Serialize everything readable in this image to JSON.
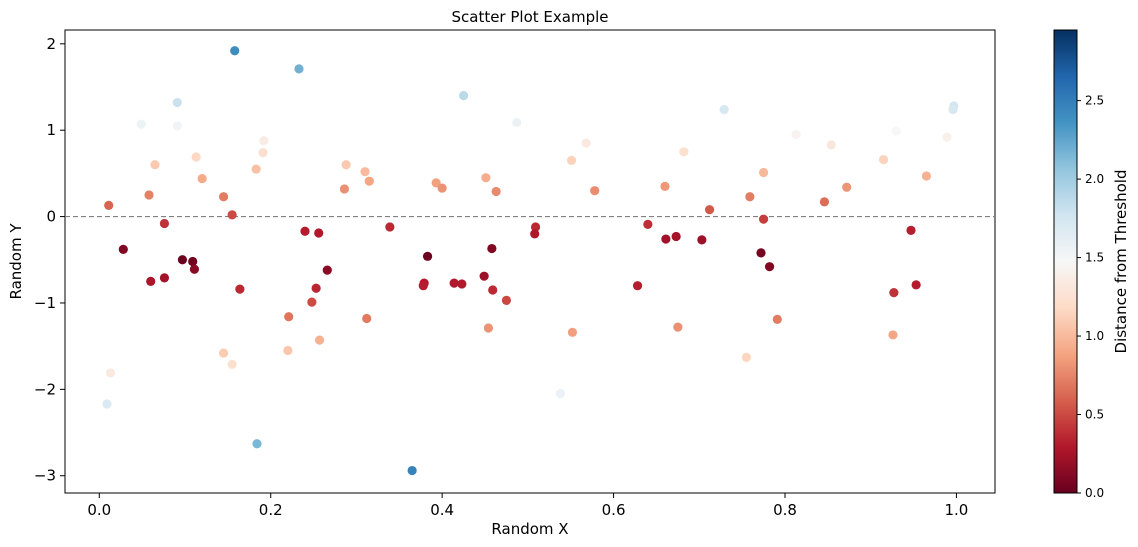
{
  "chart_data": {
    "type": "scatter",
    "title": "Scatter Plot Example",
    "xlabel": "Random X",
    "ylabel": "Random Y",
    "xlim": [
      -0.04,
      1.045
    ],
    "ylim": [
      -3.2,
      2.16
    ],
    "xticks": [
      0.0,
      0.2,
      0.4,
      0.6,
      0.8,
      1.0
    ],
    "xtick_labels": [
      "0.0",
      "0.2",
      "0.4",
      "0.6",
      "0.8",
      "1.0"
    ],
    "yticks": [
      -3,
      -2,
      -1,
      0,
      1,
      2
    ],
    "ytick_labels": [
      "−3",
      "−2",
      "−1",
      "0",
      "1",
      "2"
    ],
    "threshold_line": {
      "y": 0,
      "style": "dashed",
      "color": "#808080"
    },
    "colormap": "RdBu",
    "colorbar": {
      "label": "Distance from Threshold",
      "range": [
        0.0,
        2.95
      ],
      "ticks": [
        0.0,
        0.5,
        1.0,
        1.5,
        2.0,
        2.5
      ],
      "tick_labels": [
        "0.0",
        "0.5",
        "1.0",
        "1.5",
        "2.0",
        "2.5"
      ]
    },
    "grid": false,
    "points": [
      {
        "x": 0.158,
        "y": 1.92,
        "c": 2.4
      },
      {
        "x": 0.233,
        "y": 1.71,
        "c": 2.19
      },
      {
        "x": 0.425,
        "y": 1.4,
        "c": 1.88
      },
      {
        "x": 0.091,
        "y": 1.32,
        "c": 1.8
      },
      {
        "x": 0.729,
        "y": 1.24,
        "c": 1.72
      },
      {
        "x": 0.997,
        "y": 1.28,
        "c": 1.76
      },
      {
        "x": 0.996,
        "y": 1.24,
        "c": 1.72
      },
      {
        "x": 0.049,
        "y": 1.07,
        "c": 1.55
      },
      {
        "x": 0.091,
        "y": 1.05,
        "c": 1.53
      },
      {
        "x": 0.487,
        "y": 1.09,
        "c": 1.57
      },
      {
        "x": 0.93,
        "y": 0.99,
        "c": 1.47
      },
      {
        "x": 0.813,
        "y": 0.95,
        "c": 1.43
      },
      {
        "x": 0.989,
        "y": 0.92,
        "c": 1.4
      },
      {
        "x": 0.192,
        "y": 0.88,
        "c": 1.36
      },
      {
        "x": 0.568,
        "y": 0.85,
        "c": 1.33
      },
      {
        "x": 0.854,
        "y": 0.83,
        "c": 1.31
      },
      {
        "x": 0.682,
        "y": 0.75,
        "c": 1.23
      },
      {
        "x": 0.191,
        "y": 0.74,
        "c": 1.22
      },
      {
        "x": 0.113,
        "y": 0.69,
        "c": 1.17
      },
      {
        "x": 0.915,
        "y": 0.66,
        "c": 1.14
      },
      {
        "x": 0.551,
        "y": 0.65,
        "c": 1.13
      },
      {
        "x": 0.065,
        "y": 0.6,
        "c": 1.08
      },
      {
        "x": 0.288,
        "y": 0.6,
        "c": 1.08
      },
      {
        "x": 0.183,
        "y": 0.55,
        "c": 1.03
      },
      {
        "x": 0.31,
        "y": 0.52,
        "c": 1.0
      },
      {
        "x": 0.775,
        "y": 0.51,
        "c": 0.99
      },
      {
        "x": 0.965,
        "y": 0.47,
        "c": 0.95
      },
      {
        "x": 0.451,
        "y": 0.45,
        "c": 0.93
      },
      {
        "x": 0.12,
        "y": 0.44,
        "c": 0.92
      },
      {
        "x": 0.315,
        "y": 0.41,
        "c": 0.89
      },
      {
        "x": 0.393,
        "y": 0.39,
        "c": 0.87
      },
      {
        "x": 0.66,
        "y": 0.35,
        "c": 0.83
      },
      {
        "x": 0.872,
        "y": 0.34,
        "c": 0.82
      },
      {
        "x": 0.4,
        "y": 0.33,
        "c": 0.81
      },
      {
        "x": 0.286,
        "y": 0.32,
        "c": 0.8
      },
      {
        "x": 0.578,
        "y": 0.3,
        "c": 0.78
      },
      {
        "x": 0.463,
        "y": 0.29,
        "c": 0.77
      },
      {
        "x": 0.058,
        "y": 0.25,
        "c": 0.73
      },
      {
        "x": 0.145,
        "y": 0.23,
        "c": 0.71
      },
      {
        "x": 0.759,
        "y": 0.23,
        "c": 0.71
      },
      {
        "x": 0.846,
        "y": 0.17,
        "c": 0.65
      },
      {
        "x": 0.011,
        "y": 0.13,
        "c": 0.61
      },
      {
        "x": 0.712,
        "y": 0.08,
        "c": 0.56
      },
      {
        "x": 0.155,
        "y": 0.02,
        "c": 0.5
      },
      {
        "x": 0.775,
        "y": -0.03,
        "c": 0.45
      },
      {
        "x": 0.076,
        "y": -0.08,
        "c": 0.4
      },
      {
        "x": 0.64,
        "y": -0.09,
        "c": 0.39
      },
      {
        "x": 0.509,
        "y": -0.12,
        "c": 0.36
      },
      {
        "x": 0.339,
        "y": -0.12,
        "c": 0.36
      },
      {
        "x": 0.947,
        "y": -0.16,
        "c": 0.32
      },
      {
        "x": 0.24,
        "y": -0.17,
        "c": 0.31
      },
      {
        "x": 0.508,
        "y": -0.2,
        "c": 0.28
      },
      {
        "x": 0.256,
        "y": -0.19,
        "c": 0.29
      },
      {
        "x": 0.673,
        "y": -0.23,
        "c": 0.25
      },
      {
        "x": 0.661,
        "y": -0.26,
        "c": 0.22
      },
      {
        "x": 0.703,
        "y": -0.27,
        "c": 0.21
      },
      {
        "x": 0.458,
        "y": -0.37,
        "c": 0.11
      },
      {
        "x": 0.028,
        "y": -0.38,
        "c": 0.1
      },
      {
        "x": 0.772,
        "y": -0.42,
        "c": 0.06
      },
      {
        "x": 0.383,
        "y": -0.46,
        "c": 0.02
      },
      {
        "x": 0.097,
        "y": -0.5,
        "c": 0.02
      },
      {
        "x": 0.109,
        "y": -0.52,
        "c": 0.04
      },
      {
        "x": 0.782,
        "y": -0.58,
        "c": 0.1
      },
      {
        "x": 0.111,
        "y": -0.61,
        "c": 0.13
      },
      {
        "x": 0.266,
        "y": -0.62,
        "c": 0.14
      },
      {
        "x": 0.449,
        "y": -0.69,
        "c": 0.21
      },
      {
        "x": 0.076,
        "y": -0.71,
        "c": 0.23
      },
      {
        "x": 0.06,
        "y": -0.75,
        "c": 0.27
      },
      {
        "x": 0.379,
        "y": -0.77,
        "c": 0.29
      },
      {
        "x": 0.414,
        "y": -0.77,
        "c": 0.29
      },
      {
        "x": 0.423,
        "y": -0.78,
        "c": 0.3
      },
      {
        "x": 0.953,
        "y": -0.79,
        "c": 0.31
      },
      {
        "x": 0.378,
        "y": -0.8,
        "c": 0.32
      },
      {
        "x": 0.628,
        "y": -0.8,
        "c": 0.32
      },
      {
        "x": 0.253,
        "y": -0.83,
        "c": 0.35
      },
      {
        "x": 0.164,
        "y": -0.84,
        "c": 0.36
      },
      {
        "x": 0.459,
        "y": -0.85,
        "c": 0.37
      },
      {
        "x": 0.927,
        "y": -0.88,
        "c": 0.4
      },
      {
        "x": 0.475,
        "y": -0.97,
        "c": 0.49
      },
      {
        "x": 0.248,
        "y": -0.99,
        "c": 0.51
      },
      {
        "x": 0.221,
        "y": -1.16,
        "c": 0.68
      },
      {
        "x": 0.791,
        "y": -1.19,
        "c": 0.71
      },
      {
        "x": 0.312,
        "y": -1.18,
        "c": 0.7
      },
      {
        "x": 0.454,
        "y": -1.29,
        "c": 0.81
      },
      {
        "x": 0.675,
        "y": -1.28,
        "c": 0.8
      },
      {
        "x": 0.552,
        "y": -1.34,
        "c": 0.86
      },
      {
        "x": 0.926,
        "y": -1.37,
        "c": 0.89
      },
      {
        "x": 0.257,
        "y": -1.43,
        "c": 0.95
      },
      {
        "x": 0.22,
        "y": -1.55,
        "c": 1.07
      },
      {
        "x": 0.145,
        "y": -1.58,
        "c": 1.1
      },
      {
        "x": 0.755,
        "y": -1.63,
        "c": 1.15
      },
      {
        "x": 0.155,
        "y": -1.71,
        "c": 1.23
      },
      {
        "x": 0.013,
        "y": -1.81,
        "c": 1.33
      },
      {
        "x": 0.538,
        "y": -2.05,
        "c": 1.57
      },
      {
        "x": 0.009,
        "y": -2.17,
        "c": 1.69
      },
      {
        "x": 0.184,
        "y": -2.63,
        "c": 2.15
      },
      {
        "x": 0.365,
        "y": -2.94,
        "c": 2.46
      }
    ]
  }
}
